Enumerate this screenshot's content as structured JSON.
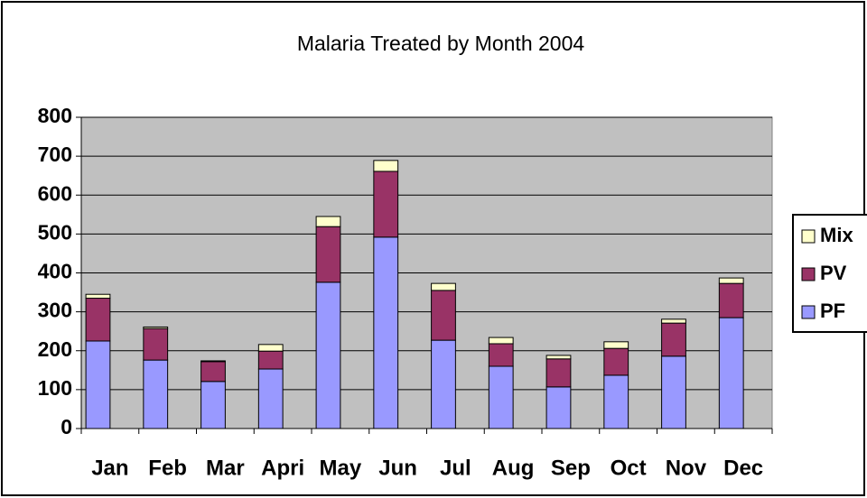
{
  "chart_data": {
    "type": "stacked_bar",
    "title": "Malaria Treated by Month 2004",
    "categories": [
      "Jan",
      "Feb",
      "Mar",
      "Apri",
      "May",
      "Jun",
      "Jul",
      "Aug",
      "Sep",
      "Oct",
      "Nov",
      "Dec"
    ],
    "series": [
      {
        "name": "PF",
        "color": "#9999ff",
        "values": [
          225,
          176,
          121,
          153,
          376,
          492,
          227,
          160,
          107,
          137,
          186,
          285
        ]
      },
      {
        "name": "PV",
        "color": "#993366",
        "values": [
          110,
          81,
          51,
          46,
          143,
          169,
          128,
          58,
          72,
          69,
          85,
          88
        ]
      },
      {
        "name": "Mix",
        "color": "#ffffcc",
        "values": [
          10,
          4,
          2,
          17,
          26,
          28,
          18,
          16,
          9,
          17,
          10,
          14
        ]
      }
    ],
    "ylim": [
      0,
      800
    ],
    "yticks": [
      0,
      100,
      200,
      300,
      400,
      500,
      600,
      700,
      800
    ],
    "grid": true,
    "legend": "right"
  }
}
